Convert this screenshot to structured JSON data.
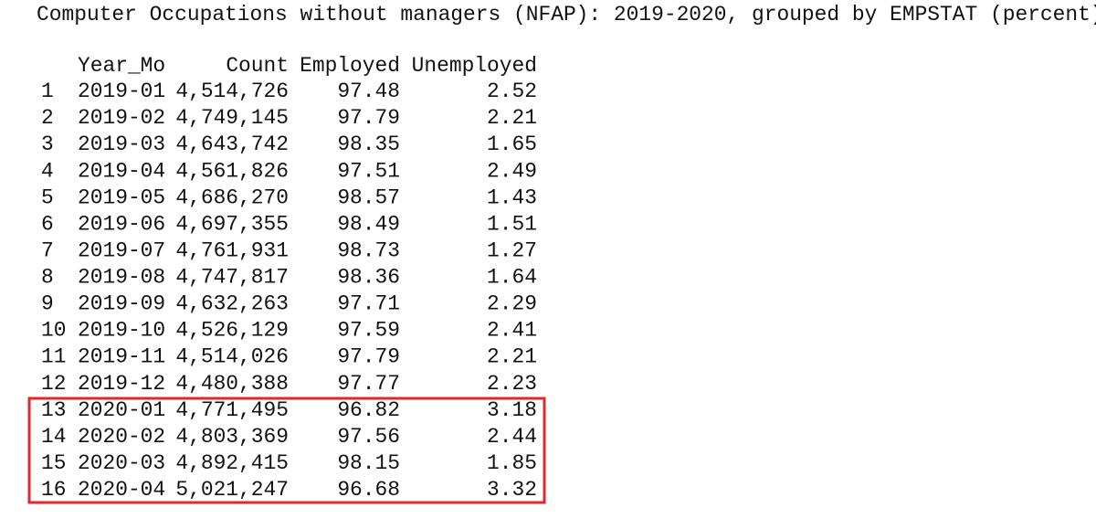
{
  "title": "Computer Occupations without managers (NFAP): 2019-2020, grouped by EMPSTAT (percent)",
  "table": {
    "columns": [
      "Year_Mo",
      "Count",
      "Employed",
      "Unemployed"
    ],
    "rows": [
      [
        "1",
        "2019-01",
        "4,514,726",
        "97.48",
        "2.52"
      ],
      [
        "2",
        "2019-02",
        "4,749,145",
        "97.79",
        "2.21"
      ],
      [
        "3",
        "2019-03",
        "4,643,742",
        "98.35",
        "1.65"
      ],
      [
        "4",
        "2019-04",
        "4,561,826",
        "97.51",
        "2.49"
      ],
      [
        "5",
        "2019-05",
        "4,686,270",
        "98.57",
        "1.43"
      ],
      [
        "6",
        "2019-06",
        "4,697,355",
        "98.49",
        "1.51"
      ],
      [
        "7",
        "2019-07",
        "4,761,931",
        "98.73",
        "1.27"
      ],
      [
        "8",
        "2019-08",
        "4,747,817",
        "98.36",
        "1.64"
      ],
      [
        "9",
        "2019-09",
        "4,632,263",
        "97.71",
        "2.29"
      ],
      [
        "10",
        "2019-10",
        "4,526,129",
        "97.59",
        "2.41"
      ],
      [
        "11",
        "2019-11",
        "4,514,026",
        "97.79",
        "2.21"
      ],
      [
        "12",
        "2019-12",
        "4,480,388",
        "97.77",
        "2.23"
      ],
      [
        "13",
        "2020-01",
        "4,771,495",
        "96.82",
        "3.18"
      ],
      [
        "14",
        "2020-02",
        "4,803,369",
        "97.56",
        "2.44"
      ],
      [
        "15",
        "2020-03",
        "4,892,415",
        "98.15",
        "1.85"
      ],
      [
        "16",
        "2020-04",
        "5,021,247",
        "96.68",
        "3.32"
      ]
    ]
  }
}
